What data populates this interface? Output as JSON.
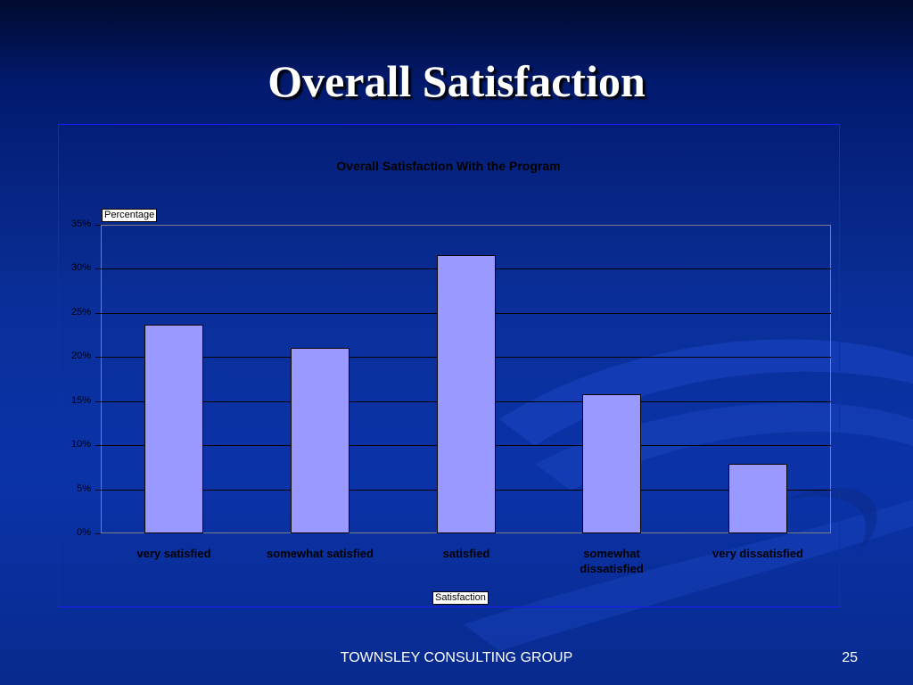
{
  "slide": {
    "title": "Overall Satisfaction",
    "footer": "TOWNSLEY CONSULTING GROUP",
    "page_number": "25"
  },
  "colors": {
    "background": "#0b33a8",
    "bar_fill": "#9999ff",
    "chart_frame_border": "#1a1aff",
    "title_text": "#ffffff"
  },
  "chart_data": {
    "type": "bar",
    "title": "Overall Satisfaction With the Program",
    "xlabel": "Satisfaction",
    "ylabel": "Percentage",
    "categories": [
      "very satisfied",
      "somewhat satisfied",
      "satisfied",
      "somewhat dissatisfied",
      "very dissatisfied"
    ],
    "values": [
      23.7,
      21.0,
      31.6,
      15.8,
      7.9
    ],
    "ylim": [
      0,
      35
    ],
    "yticks": [
      0,
      5,
      10,
      15,
      20,
      25,
      30,
      35
    ],
    "ytick_labels": [
      "0%",
      "5%",
      "10%",
      "15%",
      "20%",
      "25%",
      "30%",
      "35%"
    ],
    "grid": true,
    "legend": "none"
  }
}
